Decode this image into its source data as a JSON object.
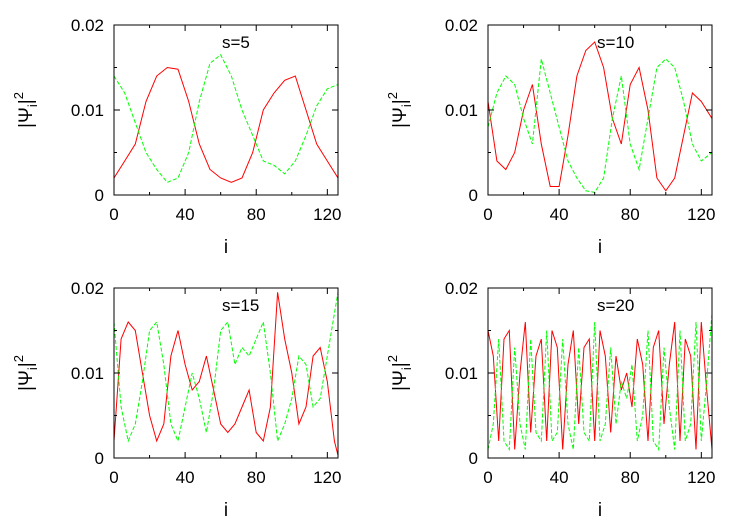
{
  "chart_data": [
    {
      "type": "line",
      "annotation": "s=5",
      "xlabel": "i",
      "ylabel": "|Ψi|2",
      "xlim": [
        0,
        126
      ],
      "ylim": [
        0,
        0.02
      ],
      "x_ticks": [
        "0",
        "40",
        "80",
        "120"
      ],
      "y_ticks": [
        "0",
        "0.01",
        "0.02"
      ],
      "series": [
        {
          "color": "#ff0000",
          "dash": "solid",
          "x": [
            0,
            6,
            12,
            18,
            24,
            30,
            36,
            42,
            48,
            54,
            60,
            66,
            72,
            78,
            84,
            90,
            96,
            102,
            108,
            114,
            120,
            126
          ],
          "y": [
            0.002,
            0.004,
            0.006,
            0.011,
            0.014,
            0.015,
            0.0148,
            0.011,
            0.006,
            0.003,
            0.002,
            0.0015,
            0.002,
            0.005,
            0.01,
            0.012,
            0.0135,
            0.014,
            0.01,
            0.006,
            0.004,
            0.002
          ]
        },
        {
          "color": "#00ff00",
          "dash": "dashed",
          "x": [
            0,
            6,
            12,
            18,
            24,
            30,
            36,
            42,
            48,
            54,
            60,
            66,
            72,
            78,
            84,
            90,
            96,
            102,
            108,
            114,
            120,
            126
          ],
          "y": [
            0.014,
            0.012,
            0.0085,
            0.005,
            0.003,
            0.0015,
            0.002,
            0.005,
            0.011,
            0.0155,
            0.0165,
            0.014,
            0.01,
            0.007,
            0.004,
            0.0035,
            0.0025,
            0.004,
            0.007,
            0.0105,
            0.0125,
            0.013
          ]
        }
      ]
    },
    {
      "type": "line",
      "annotation": "s=10",
      "xlabel": "i",
      "ylabel": "|Ψi|2",
      "xlim": [
        0,
        126
      ],
      "ylim": [
        0,
        0.02
      ],
      "x_ticks": [
        "0",
        "40",
        "80",
        "120"
      ],
      "y_ticks": [
        "0",
        "0.01",
        "0.02"
      ],
      "series": [
        {
          "color": "#ff0000",
          "dash": "solid",
          "x": [
            0,
            5,
            10,
            15,
            20,
            25,
            30,
            35,
            40,
            45,
            50,
            55,
            60,
            65,
            70,
            75,
            80,
            85,
            90,
            95,
            100,
            105,
            110,
            115,
            120,
            126
          ],
          "y": [
            0.011,
            0.004,
            0.003,
            0.005,
            0.01,
            0.013,
            0.006,
            0.001,
            0.001,
            0.007,
            0.014,
            0.017,
            0.018,
            0.015,
            0.009,
            0.006,
            0.013,
            0.015,
            0.01,
            0.002,
            0.0005,
            0.002,
            0.007,
            0.012,
            0.011,
            0.009
          ]
        },
        {
          "color": "#00ff00",
          "dash": "dashed",
          "x": [
            0,
            5,
            10,
            15,
            20,
            25,
            30,
            35,
            40,
            45,
            50,
            55,
            60,
            65,
            70,
            75,
            80,
            85,
            90,
            95,
            100,
            105,
            110,
            115,
            120,
            126
          ],
          "y": [
            0.008,
            0.012,
            0.014,
            0.013,
            0.009,
            0.006,
            0.016,
            0.012,
            0.008,
            0.004,
            0.002,
            0.0005,
            0.0003,
            0.002,
            0.009,
            0.014,
            0.006,
            0.003,
            0.009,
            0.015,
            0.016,
            0.015,
            0.011,
            0.006,
            0.004,
            0.005
          ]
        }
      ]
    },
    {
      "type": "line",
      "annotation": "s=15",
      "xlabel": "i",
      "ylabel": "|Ψi|2",
      "xlim": [
        0,
        126
      ],
      "ylim": [
        0,
        0.02
      ],
      "x_ticks": [
        "0",
        "40",
        "80",
        "120"
      ],
      "y_ticks": [
        "0",
        "0.01",
        "0.02"
      ],
      "series": [
        {
          "color": "#ff0000",
          "dash": "solid",
          "x": [
            0,
            4,
            8,
            12,
            16,
            20,
            24,
            28,
            32,
            36,
            40,
            44,
            48,
            52,
            56,
            60,
            64,
            68,
            72,
            76,
            80,
            84,
            88,
            92,
            96,
            100,
            104,
            108,
            112,
            116,
            120,
            124,
            126
          ],
          "y": [
            0.002,
            0.014,
            0.016,
            0.015,
            0.01,
            0.005,
            0.002,
            0.004,
            0.012,
            0.015,
            0.011,
            0.008,
            0.009,
            0.012,
            0.008,
            0.004,
            0.003,
            0.004,
            0.006,
            0.008,
            0.003,
            0.002,
            0.006,
            0.0195,
            0.014,
            0.01,
            0.004,
            0.006,
            0.012,
            0.013,
            0.009,
            0.002,
            0.0003
          ]
        },
        {
          "color": "#00ff00",
          "dash": "dashed",
          "x": [
            0,
            4,
            8,
            12,
            16,
            20,
            24,
            28,
            32,
            36,
            40,
            44,
            48,
            52,
            56,
            60,
            64,
            68,
            72,
            76,
            80,
            84,
            88,
            92,
            96,
            100,
            104,
            108,
            112,
            116,
            120,
            124,
            126
          ],
          "y": [
            0.016,
            0.006,
            0.002,
            0.004,
            0.009,
            0.015,
            0.016,
            0.011,
            0.004,
            0.002,
            0.006,
            0.01,
            0.007,
            0.003,
            0.008,
            0.015,
            0.016,
            0.011,
            0.013,
            0.012,
            0.014,
            0.016,
            0.01,
            0.002,
            0.004,
            0.007,
            0.012,
            0.011,
            0.006,
            0.007,
            0.012,
            0.017,
            0.0195
          ]
        }
      ]
    },
    {
      "type": "line",
      "annotation": "s=20",
      "xlabel": "i",
      "ylabel": "|Ψi|2",
      "xlim": [
        0,
        126
      ],
      "ylim": [
        0,
        0.02
      ],
      "x_ticks": [
        "0",
        "40",
        "80",
        "120"
      ],
      "y_ticks": [
        "0",
        "0.01",
        "0.02"
      ],
      "series": [
        {
          "color": "#ff0000",
          "dash": "solid",
          "x": [
            0,
            3,
            6,
            9,
            12,
            15,
            18,
            21,
            24,
            27,
            30,
            33,
            36,
            39,
            42,
            45,
            48,
            51,
            54,
            57,
            60,
            63,
            66,
            69,
            72,
            75,
            78,
            81,
            84,
            87,
            90,
            93,
            96,
            99,
            102,
            105,
            108,
            111,
            114,
            117,
            120,
            123,
            126
          ],
          "y": [
            0.015,
            0.012,
            0.002,
            0.014,
            0.015,
            0.001,
            0.01,
            0.016,
            0.003,
            0.012,
            0.014,
            0.002,
            0.015,
            0.013,
            0.001,
            0.011,
            0.015,
            0.004,
            0.013,
            0.014,
            0.002,
            0.015,
            0.012,
            0.003,
            0.012,
            0.008,
            0.01,
            0.006,
            0.014,
            0.011,
            0.002,
            0.013,
            0.015,
            0.004,
            0.011,
            0.016,
            0.002,
            0.014,
            0.012,
            0.001,
            0.016,
            0.008,
            0.001
          ]
        },
        {
          "color": "#00ff00",
          "dash": "dashed",
          "x": [
            0,
            3,
            6,
            9,
            12,
            15,
            18,
            21,
            24,
            27,
            30,
            33,
            36,
            39,
            42,
            45,
            48,
            51,
            54,
            57,
            60,
            63,
            66,
            69,
            72,
            75,
            78,
            81,
            84,
            87,
            90,
            93,
            96,
            99,
            102,
            105,
            108,
            111,
            114,
            117,
            120,
            123,
            126
          ],
          "y": [
            0.001,
            0.004,
            0.014,
            0.002,
            0.001,
            0.013,
            0.004,
            0.001,
            0.014,
            0.003,
            0.002,
            0.015,
            0.002,
            0.003,
            0.014,
            0.004,
            0.001,
            0.013,
            0.003,
            0.002,
            0.016,
            0.002,
            0.004,
            0.013,
            0.004,
            0.009,
            0.007,
            0.011,
            0.002,
            0.005,
            0.015,
            0.002,
            0.001,
            0.013,
            0.006,
            0.001,
            0.015,
            0.002,
            0.004,
            0.016,
            0.002,
            0.009,
            0.017
          ]
        }
      ]
    }
  ]
}
